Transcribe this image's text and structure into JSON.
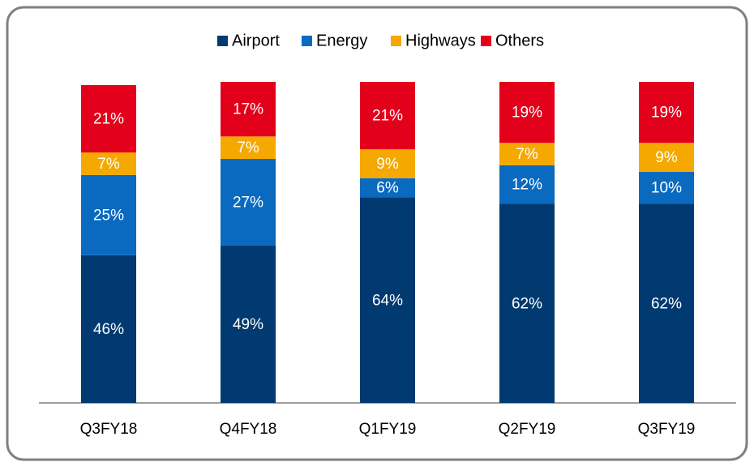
{
  "chart_data": {
    "type": "stacked_bar",
    "categories": [
      "Q3FY18",
      "Q4FY18",
      "Q1FY19",
      "Q2FY19",
      "Q3FY19"
    ],
    "series": [
      {
        "name": "Airport",
        "color": "#003a70",
        "values": [
          46,
          49,
          64,
          62,
          62
        ],
        "value_labels": [
          "46%",
          "49%",
          "64%",
          "62%",
          "62%"
        ]
      },
      {
        "name": "Energy",
        "color": "#0a6abf",
        "values": [
          25,
          27,
          6,
          12,
          10
        ],
        "value_labels": [
          "25%",
          "27%",
          "6%",
          "12%",
          "10%"
        ]
      },
      {
        "name": "Highways",
        "color": "#f5a800",
        "values": [
          7,
          7,
          9,
          7,
          9
        ],
        "value_labels": [
          "7%",
          "7%",
          "9%",
          "7%",
          "9%"
        ]
      },
      {
        "name": "Others",
        "color": "#e3001b",
        "values": [
          21,
          17,
          21,
          19,
          19
        ],
        "value_labels": [
          "21%",
          "17%",
          "21%",
          "19%",
          "19%"
        ]
      }
    ],
    "ylim": [
      0,
      100
    ],
    "legend": "top"
  }
}
